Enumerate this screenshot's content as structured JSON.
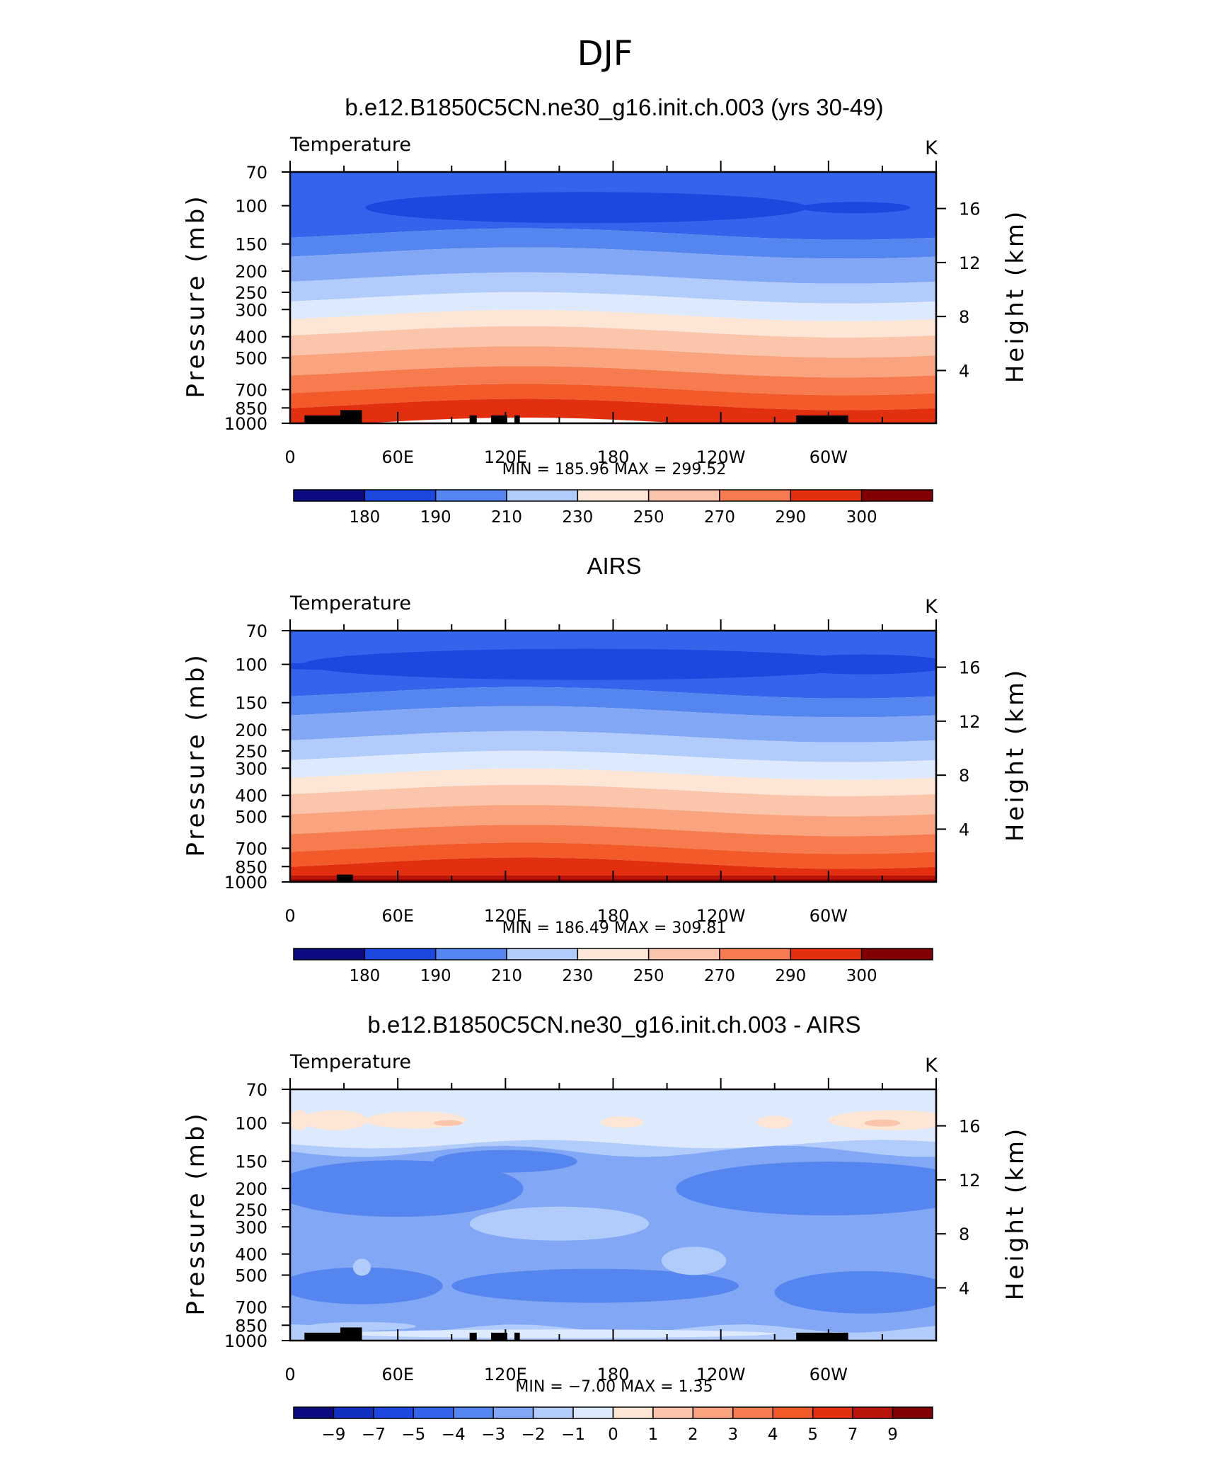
{
  "page_title": "DJF",
  "chart_data": [
    {
      "type": "heatmap",
      "title": "b.e12.B1850C5CN.ne30_g16.init.ch.003 (yrs 30-49)",
      "left_string": "Temperature",
      "right_string": "K",
      "xlabel": "",
      "ylabel": "Pressure (mb)",
      "ylabel_right": "Height (km)",
      "xticks": [
        "0",
        "60E",
        "120E",
        "180",
        "120W",
        "60W"
      ],
      "yticks": [
        "70",
        "100",
        "150",
        "200",
        "250",
        "300",
        "400",
        "500",
        "700",
        "850",
        "1000"
      ],
      "yticks_right": [
        "16",
        "12",
        "8",
        "4"
      ],
      "min_max": "MIN = 185.96   MAX = 299.52",
      "min": 185.96,
      "max": 299.52,
      "colorbar_labels": [
        "180",
        "190",
        "210",
        "230",
        "250",
        "270",
        "290",
        "300"
      ],
      "xlim": [
        0,
        360
      ],
      "ylim": [
        1000,
        70
      ],
      "y_scale": "log"
    },
    {
      "type": "heatmap",
      "title": "AIRS",
      "left_string": "Temperature",
      "right_string": "K",
      "xlabel": "",
      "ylabel": "Pressure (mb)",
      "ylabel_right": "Height (km)",
      "xticks": [
        "0",
        "60E",
        "120E",
        "180",
        "120W",
        "60W"
      ],
      "yticks": [
        "70",
        "100",
        "150",
        "200",
        "250",
        "300",
        "400",
        "500",
        "700",
        "850",
        "1000"
      ],
      "yticks_right": [
        "16",
        "12",
        "8",
        "4"
      ],
      "min_max": "MIN = 186.49   MAX = 309.81",
      "min": 186.49,
      "max": 309.81,
      "colorbar_labels": [
        "180",
        "190",
        "210",
        "230",
        "250",
        "270",
        "290",
        "300"
      ],
      "xlim": [
        0,
        360
      ],
      "ylim": [
        1000,
        70
      ],
      "y_scale": "log"
    },
    {
      "type": "heatmap",
      "title": "b.e12.B1850C5CN.ne30_g16.init.ch.003 - AIRS",
      "left_string": "Temperature",
      "right_string": "K",
      "xlabel": "",
      "ylabel": "Pressure (mb)",
      "ylabel_right": "Height (km)",
      "xticks": [
        "0",
        "60E",
        "120E",
        "180",
        "120W",
        "60W"
      ],
      "yticks": [
        "70",
        "100",
        "150",
        "200",
        "250",
        "300",
        "400",
        "500",
        "700",
        "850",
        "1000"
      ],
      "yticks_right": [
        "16",
        "12",
        "8",
        "4"
      ],
      "min_max": "MIN =   −7.00   MAX =     1.35",
      "min": -7.0,
      "max": 1.35,
      "colorbar_labels": [
        "−9",
        "−7",
        "−5",
        "−4",
        "−3",
        "−2",
        "−1",
        "0",
        "1",
        "2",
        "3",
        "4",
        "5",
        "7",
        "9"
      ],
      "xlim": [
        0,
        360
      ],
      "ylim": [
        1000,
        70
      ],
      "y_scale": "log"
    }
  ],
  "palette": [
    "#0c0a80",
    "#1030c0",
    "#1c48e0",
    "#3464ec",
    "#5586ef",
    "#82a8f5",
    "#b1cbfa",
    "#dde9fc",
    "#fde6d6",
    "#fac5ab",
    "#f9a47e",
    "#f67c4f",
    "#f25a29",
    "#e22f10",
    "#b8140a",
    "#800004"
  ]
}
